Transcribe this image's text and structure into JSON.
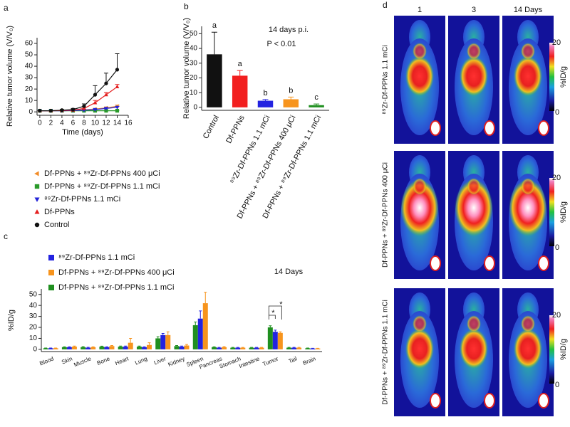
{
  "chart_data": [
    {
      "type": "line",
      "panel_label": "a",
      "x_label": "Time (days)",
      "y_label": "Relative tumor volume (V/V₀)",
      "x": [
        0,
        2,
        4,
        6,
        8,
        10,
        12,
        14
      ],
      "xlim": [
        -0.5,
        16
      ],
      "xticks": [
        0,
        2,
        4,
        6,
        8,
        10,
        12,
        14,
        16
      ],
      "ylim": [
        -3,
        65
      ],
      "yticks": [
        0,
        10,
        20,
        30,
        40,
        50,
        60
      ],
      "series": [
        {
          "name": "Df-PPNs + ⁸⁹Zr-Df-PPNs 400 μCi",
          "color": "#f28c28",
          "marker": "triangle-left",
          "values": [
            1,
            1,
            1,
            1.3,
            1.8,
            2.5,
            3.5,
            5
          ],
          "errors": [
            0,
            0,
            0.2,
            0.3,
            0.5,
            0.6,
            0.8,
            1
          ]
        },
        {
          "name": "Df-PPNs + ⁸⁹Zr-Df-PPNs 1.1 mCi",
          "color": "#2a9a2a",
          "marker": "square",
          "values": [
            1,
            1,
            1,
            1,
            1,
            1,
            1,
            1
          ],
          "errors": [
            0,
            0,
            0.1,
            0.1,
            0.1,
            0.2,
            0.2,
            0.2
          ]
        },
        {
          "name": "⁸⁹Zr-Df-PPNs 1.1 mCi",
          "color": "#2323d8",
          "marker": "triangle-down",
          "values": [
            1,
            1,
            1,
            1.2,
            1.5,
            2,
            3,
            4
          ],
          "errors": [
            0,
            0,
            0.2,
            0.3,
            0.4,
            0.5,
            0.7,
            0.8
          ]
        },
        {
          "name": "Df-PPNs",
          "color": "#e41e1e",
          "marker": "triangle-up",
          "values": [
            1,
            1,
            1.2,
            1.5,
            3,
            8,
            15,
            22
          ],
          "errors": [
            0,
            0,
            0.3,
            0.5,
            1,
            2,
            2,
            2
          ]
        },
        {
          "name": "Control",
          "color": "#111111",
          "marker": "circle",
          "values": [
            1,
            1,
            1.5,
            2,
            5,
            15,
            25,
            37
          ],
          "errors": [
            0,
            0,
            0.5,
            1,
            2,
            8,
            9,
            14
          ]
        }
      ]
    },
    {
      "type": "bar",
      "panel_label": "b",
      "y_label": "Relative tumor volume (V/V₀)",
      "annotations": [
        "14 days p.i.",
        "P < 0.01"
      ],
      "categories": [
        "Control",
        "Df-PPNs",
        "⁸⁹Zr-Df-PPNs 1.1 mCi",
        "Df-PPNs + ⁸⁹Zr-Df-PPNs 400 μCi",
        "Df-PPNs + ⁸⁹Zr-Df-PPNs 1.1 mCi"
      ],
      "values": [
        36,
        21.5,
        4.5,
        5.5,
        1.5
      ],
      "errors": [
        15,
        3.5,
        0.8,
        1.5,
        0.8
      ],
      "colors": [
        "#111111",
        "#f21f1f",
        "#2323e0",
        "#f7941d",
        "#1f8f1f"
      ],
      "group_labels": [
        "a",
        "a",
        "b",
        "b",
        "c"
      ],
      "ylim": [
        -2,
        55
      ],
      "yticks": [
        0,
        10,
        20,
        30,
        40,
        50
      ]
    },
    {
      "type": "grouped_bar",
      "panel_label": "c",
      "y_label": "%ID/g",
      "annotations": [
        "14 Days"
      ],
      "significance": [
        "*",
        "*"
      ],
      "categories": [
        "Blood",
        "Skin",
        "Muscle",
        "Bone",
        "Heart",
        "Lung",
        "Liver",
        "Kidney",
        "Spleen",
        "Pancreas",
        "Stomach",
        "Intestine",
        "Tumor",
        "Tail",
        "Brain"
      ],
      "legend_order": [
        1,
        2,
        0
      ],
      "series": [
        {
          "name": "Df-PPNs + ⁸⁹Zr-Df-PPNs 1.1 mCi",
          "color": "#1f8f1f",
          "values": [
            1,
            2,
            2,
            2.5,
            2.5,
            2.5,
            10,
            3,
            22,
            2,
            1.5,
            1.5,
            20,
            1.5,
            1
          ],
          "errors": [
            0.2,
            0.4,
            0.5,
            0.4,
            0.5,
            0.5,
            1.5,
            0.5,
            3,
            0.4,
            0.3,
            0.3,
            1.5,
            0.3,
            0.2
          ]
        },
        {
          "name": "⁸⁹Zr-Df-PPNs 1.1 mCi",
          "color": "#2323e0",
          "values": [
            1,
            2,
            1.5,
            2,
            2.5,
            2,
            13,
            2.5,
            28,
            1.5,
            1.5,
            1.5,
            16,
            1.5,
            0.8
          ],
          "errors": [
            0.2,
            0.4,
            0.4,
            0.4,
            0.5,
            0.4,
            1.5,
            0.5,
            7,
            0.3,
            0.3,
            0.3,
            1.5,
            0.3,
            0.2
          ]
        },
        {
          "name": "Df-PPNs + ⁸⁹Zr-Df-PPNs 400 μCi",
          "color": "#f7941d",
          "values": [
            1,
            2.5,
            2,
            3,
            6,
            4,
            13,
            3.5,
            42,
            2,
            1.5,
            1.5,
            15,
            1.5,
            0.8
          ],
          "errors": [
            0.2,
            0.5,
            0.4,
            0.5,
            4,
            2,
            3,
            1,
            10,
            0.5,
            0.3,
            0.3,
            1,
            0.3,
            0.2
          ]
        }
      ],
      "ylim": [
        -2,
        55
      ],
      "yticks": [
        0,
        10,
        20,
        30,
        40,
        50
      ]
    }
  ],
  "pet_images": {
    "panel_label": "d",
    "columns": [
      "1",
      "3",
      "14 Days"
    ],
    "rows": [
      {
        "label": "⁸⁹Zr-Df-PPNs 1.1 mCi",
        "scale_max": 20,
        "scale_min": 0,
        "scale_unit": "%ID/g"
      },
      {
        "label": "Df-PPNs + ⁸⁹Zr-Df-PPNs 400 μCi",
        "scale_max": 20,
        "scale_min": 0,
        "scale_unit": "%ID/g"
      },
      {
        "label": "Df-PPNs + ⁸⁹Zr-Df-PPNs 1.1 mCi",
        "scale_max": 20,
        "scale_min": 0,
        "scale_unit": "%ID/g"
      }
    ]
  }
}
